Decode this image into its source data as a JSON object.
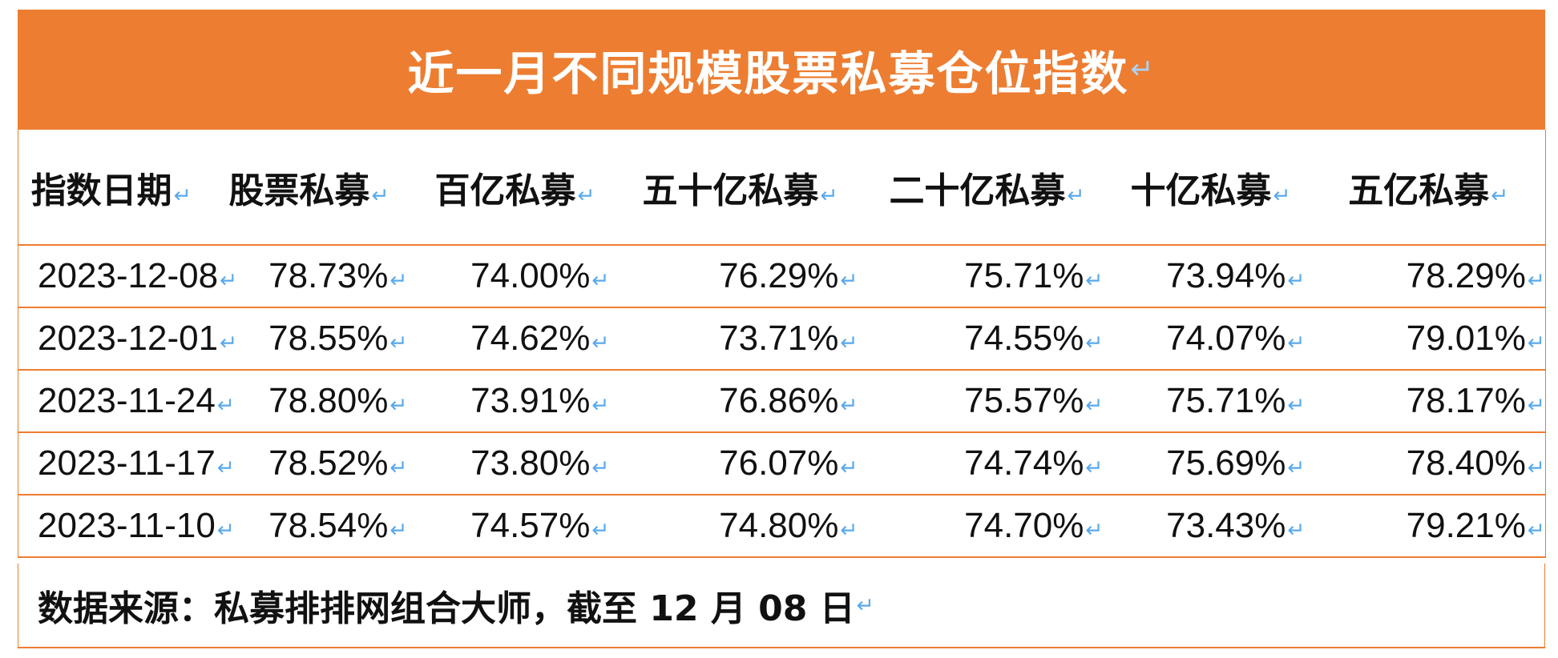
{
  "title": "近一月不同规模股票私募仓位指数",
  "return_mark": "↵",
  "headers": [
    "指数日期",
    "股票私募",
    "百亿私募",
    "五十亿私募",
    "二十亿私募",
    "十亿私募",
    "五亿私募"
  ],
  "rows": [
    [
      "2023-12-08",
      "78.73%",
      "74.00%",
      "76.29%",
      "75.71%",
      "73.94%",
      "78.29%"
    ],
    [
      "2023-12-01",
      "78.55%",
      "74.62%",
      "73.71%",
      "74.55%",
      "74.07%",
      "79.01%"
    ],
    [
      "2023-11-24",
      "78.80%",
      "73.91%",
      "76.86%",
      "75.57%",
      "75.71%",
      "78.17%"
    ],
    [
      "2023-11-17",
      "78.52%",
      "73.80%",
      "76.07%",
      "74.74%",
      "75.69%",
      "78.40%"
    ],
    [
      "2023-11-10",
      "78.54%",
      "74.57%",
      "74.80%",
      "74.70%",
      "73.43%",
      "79.21%"
    ]
  ],
  "source": "数据来源：私募排排网组合大师，截至 12 月 08 日",
  "colors": {
    "accent": "#ed7d31",
    "title_text": "#ffffff",
    "return_mark": "#5aa9ec"
  }
}
